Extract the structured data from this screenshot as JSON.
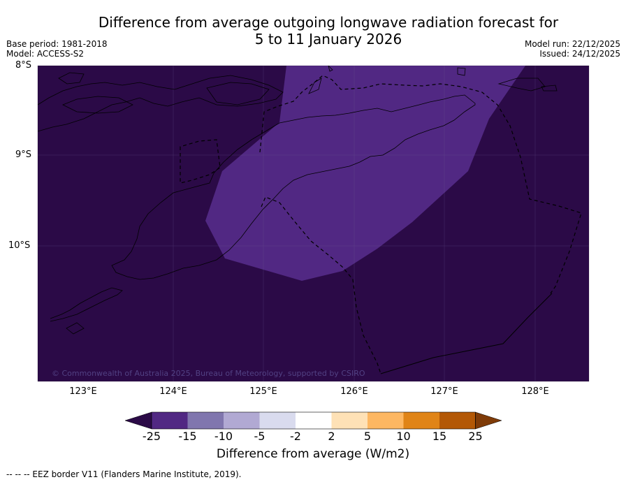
{
  "title_line1": "Difference from average outgoing longwave radiation forecast for",
  "title_line2": "5 to 11 January 2026",
  "base_period": "Base period: 1981-2018",
  "model": "Model: ACCESS-S2",
  "model_run": "Model run: 22/12/2025",
  "issued": "Issued: 24/12/2025",
  "lat_labels": [
    "8°S",
    "9°S",
    "10°S"
  ],
  "lon_labels": [
    "123°E",
    "124°E",
    "125°E",
    "126°E",
    "127°E",
    "128°E"
  ],
  "colorbar": {
    "tick_labels": [
      "-25",
      "-15",
      "-10",
      "-5",
      "-2",
      "2",
      "5",
      "10",
      "15",
      "25"
    ],
    "colors": [
      "#2b0a47",
      "#512883",
      "#8076ae",
      "#b1a9d3",
      "#d9dbee",
      "#ffffff",
      "#fee1b6",
      "#fdb762",
      "#e08417",
      "#b35806",
      "#7f3b08"
    ],
    "title": "Difference from average (W/m2)"
  },
  "copyright": "© Commonwealth of Australia 2025, Bureau of Meteorology, supported by CSIRO",
  "footnote": "--  --  -- EEZ border V11 (Flanders Marine Institute, 2019).",
  "map_colors": {
    "background": "#2b0a47",
    "anomaly_region": "#512883"
  }
}
